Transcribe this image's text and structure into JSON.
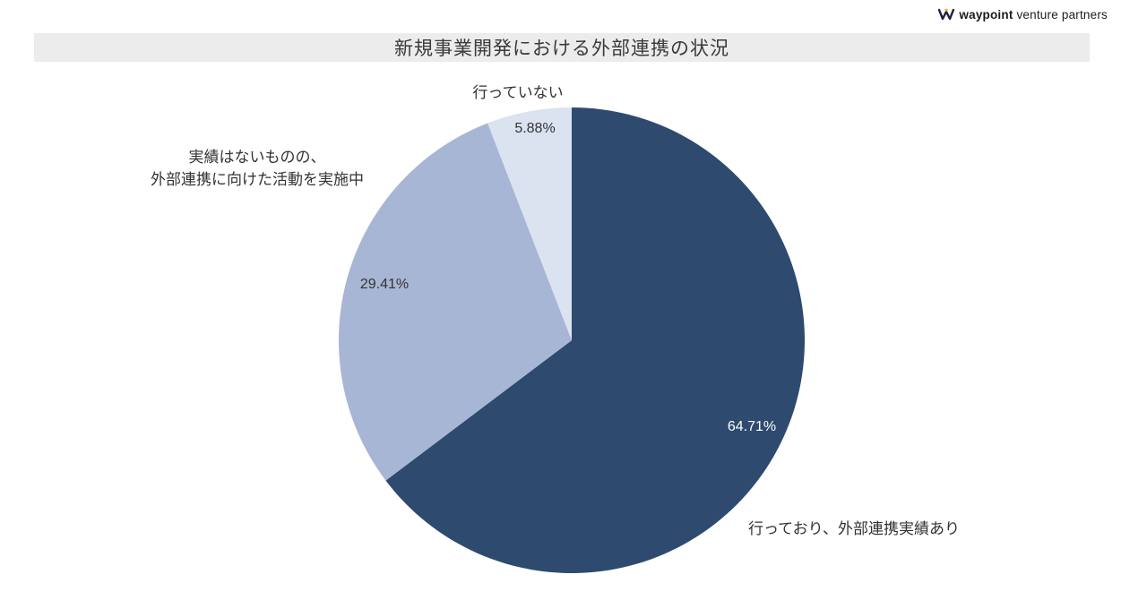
{
  "brand": {
    "name_bold": "waypoint",
    "name_rest": "venture partners"
  },
  "header": {
    "title": "新規事業開発における外部連携の状況"
  },
  "chart_data": {
    "type": "pie",
    "title": "新規事業開発における外部連携の状況",
    "start_angle": "top",
    "direction": "clockwise",
    "total": 100,
    "slices": [
      {
        "label": "行っており、外部連携実績あり",
        "value": 64.71,
        "pct_label": "64.71%",
        "color": "#2e4a6e",
        "pct_label_color": "#ffffff"
      },
      {
        "label": "実績はないものの、外部連携に向けた活動を実施中",
        "label_display": "実績はないものの、\n外部連携に向けた活動を実施中",
        "value": 29.41,
        "pct_label": "29.41%",
        "color": "#a8b6d5",
        "pct_label_color": "#333333"
      },
      {
        "label": "行っていない",
        "value": 5.88,
        "pct_label": "5.88%",
        "color": "#dbe2f0",
        "pct_label_color": "#333333"
      }
    ],
    "colors": {
      "band_background": "#ececec",
      "title_text": "#3a3a3a",
      "brand_accent": "#f5a623",
      "brand_dark": "#1d2340"
    }
  }
}
